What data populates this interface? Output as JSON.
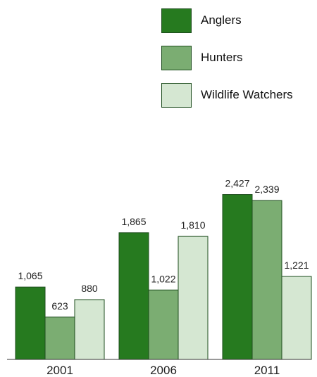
{
  "chart_data": {
    "type": "bar",
    "categories": [
      "2001",
      "2006",
      "2011"
    ],
    "series": [
      {
        "name": "Anglers",
        "color": "#267a1f",
        "values": [
          1065,
          1865,
          2427
        ],
        "labels": [
          "1,065",
          "1,865",
          "2,427"
        ]
      },
      {
        "name": "Hunters",
        "color": "#7bad72",
        "values": [
          623,
          1022,
          2339
        ],
        "labels": [
          "623",
          "1,022",
          "2,339"
        ]
      },
      {
        "name": "Wildlife Watchers",
        "color": "#d5e7d2",
        "values": [
          880,
          1810,
          1221
        ],
        "labels": [
          "880",
          "1,810",
          "1,221"
        ]
      }
    ],
    "title": "",
    "xlabel": "",
    "ylabel": "",
    "ylim": [
      0,
      2650
    ],
    "grid": false,
    "legend": "top-right"
  }
}
